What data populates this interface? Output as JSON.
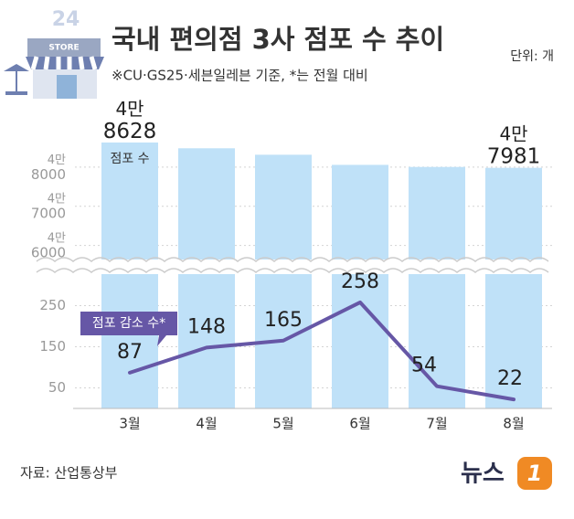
{
  "chart_data": {
    "type": "bar",
    "title": "국내 편의점 3사 점포 수 추이",
    "subtitle": "※CU·GS25·세븐일레븐 기준, *는 전월 대비",
    "unit": "단위: 개",
    "source": "자료: 산업통상부",
    "logo_text": "뉴스",
    "logo_mark": "1",
    "categories": [
      "3월",
      "4월",
      "5월",
      "6월",
      "7월",
      "8월"
    ],
    "series": [
      {
        "name": "점포 수",
        "type": "bar",
        "color": "#bfe1f8",
        "values": [
          48628,
          48480,
          48315,
          48057,
          48003,
          47981
        ],
        "value_labels": [
          "4만 8628",
          null,
          null,
          null,
          null,
          "4만 7981"
        ]
      },
      {
        "name": "점포 감소 수*",
        "type": "line",
        "axis": "y2",
        "color": "#6657a6",
        "values": [
          87,
          148,
          165,
          258,
          54,
          22
        ]
      }
    ],
    "ylim": [
      45500,
      49000
    ],
    "yticks": [
      {
        "value": 46000,
        "label": "4만 6000"
      },
      {
        "value": 47000,
        "label": "4만 7000"
      },
      {
        "value": 48000,
        "label": "4만 8000"
      }
    ],
    "y2lim": [
      0,
      300
    ],
    "y2ticks": [
      50,
      150,
      250
    ],
    "grid": true
  }
}
